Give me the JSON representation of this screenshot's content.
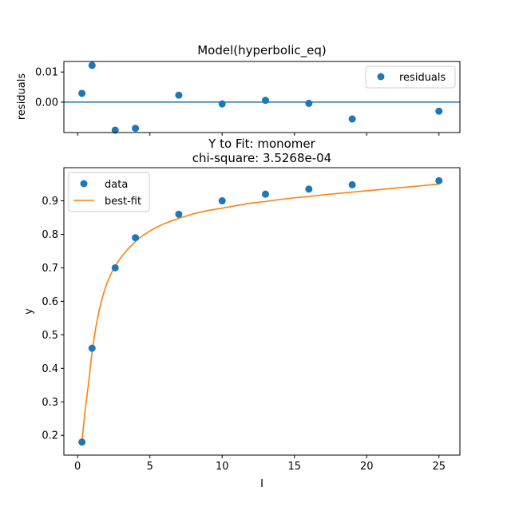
{
  "chart_data": [
    {
      "type": "scatter",
      "title": "Model(hyperbolic_eq)",
      "xlabel": "",
      "ylabel": "residuals",
      "xlim": [
        -0.95,
        26.45
      ],
      "ylim": [
        -0.0101,
        0.0135
      ],
      "yticks": [
        0.0,
        0.01
      ],
      "ytick_labels": [
        "0.00",
        "0.01"
      ],
      "xticks": [
        0,
        5,
        10,
        15,
        20,
        25
      ],
      "show_xtick_labels": false,
      "zero_line": true,
      "legend": {
        "position": "top-right",
        "entries": [
          "residuals"
        ]
      },
      "colors": {
        "points": "#1f77b4",
        "zero_line": "#1f77b4"
      },
      "series": [
        {
          "name": "residuals",
          "x": [
            0.3,
            1.0,
            2.6,
            4.0,
            7.0,
            10.0,
            13.0,
            16.0,
            19.0,
            25.0
          ],
          "y": [
            0.0029,
            0.0122,
            -0.0093,
            -0.0087,
            0.0023,
            -0.0006,
            0.0006,
            -0.0004,
            -0.0056,
            -0.003
          ]
        }
      ]
    },
    {
      "type": "scatter",
      "title": "Y to Fit: monomer",
      "subtitle": "chi-square:  3.5268e-04",
      "xlabel": "I",
      "ylabel": "y",
      "xlim": [
        -0.95,
        26.45
      ],
      "ylim": [
        0.141,
        0.999
      ],
      "xticks": [
        0,
        5,
        10,
        15,
        20,
        25
      ],
      "xtick_labels": [
        "0",
        "5",
        "10",
        "15",
        "20",
        "25"
      ],
      "yticks": [
        0.2,
        0.3,
        0.4,
        0.5,
        0.6,
        0.7,
        0.8,
        0.9
      ],
      "ytick_labels": [
        "0.2",
        "0.3",
        "0.4",
        "0.5",
        "0.6",
        "0.7",
        "0.8",
        "0.9"
      ],
      "legend": {
        "position": "top-left",
        "entries": [
          "data",
          "best-fit"
        ]
      },
      "colors": {
        "data": "#1f77b4",
        "best_fit": "#ff7f0e"
      },
      "series": [
        {
          "name": "data",
          "x": [
            0.3,
            1.0,
            2.6,
            4.0,
            7.0,
            10.0,
            13.0,
            16.0,
            19.0,
            25.0
          ],
          "y": [
            0.18,
            0.46,
            0.7,
            0.79,
            0.86,
            0.9,
            0.92,
            0.935,
            0.948,
            0.96
          ]
        },
        {
          "name": "best-fit",
          "x": [
            0.3,
            0.5,
            0.75,
            1.0,
            1.25,
            1.5,
            1.75,
            2.0,
            2.3,
            2.6,
            3.0,
            3.5,
            4.0,
            4.5,
            5.0,
            5.5,
            6.0,
            7.0,
            8.0,
            9.0,
            10.0,
            11.0,
            12.0,
            13.0,
            14.0,
            15.0,
            16.0,
            17.0,
            18.0,
            19.0,
            20.0,
            21.0,
            22.0,
            23.0,
            24.0,
            25.0
          ],
          "y": [
            0.18,
            0.267,
            0.353,
            0.449,
            0.52,
            0.575,
            0.617,
            0.651,
            0.681,
            0.706,
            0.731,
            0.757,
            0.779,
            0.796,
            0.81,
            0.822,
            0.832,
            0.848,
            0.861,
            0.871,
            0.878,
            0.886,
            0.893,
            0.898,
            0.904,
            0.909,
            0.913,
            0.918,
            0.922,
            0.926,
            0.93,
            0.934,
            0.938,
            0.942,
            0.946,
            0.95
          ]
        }
      ]
    }
  ]
}
